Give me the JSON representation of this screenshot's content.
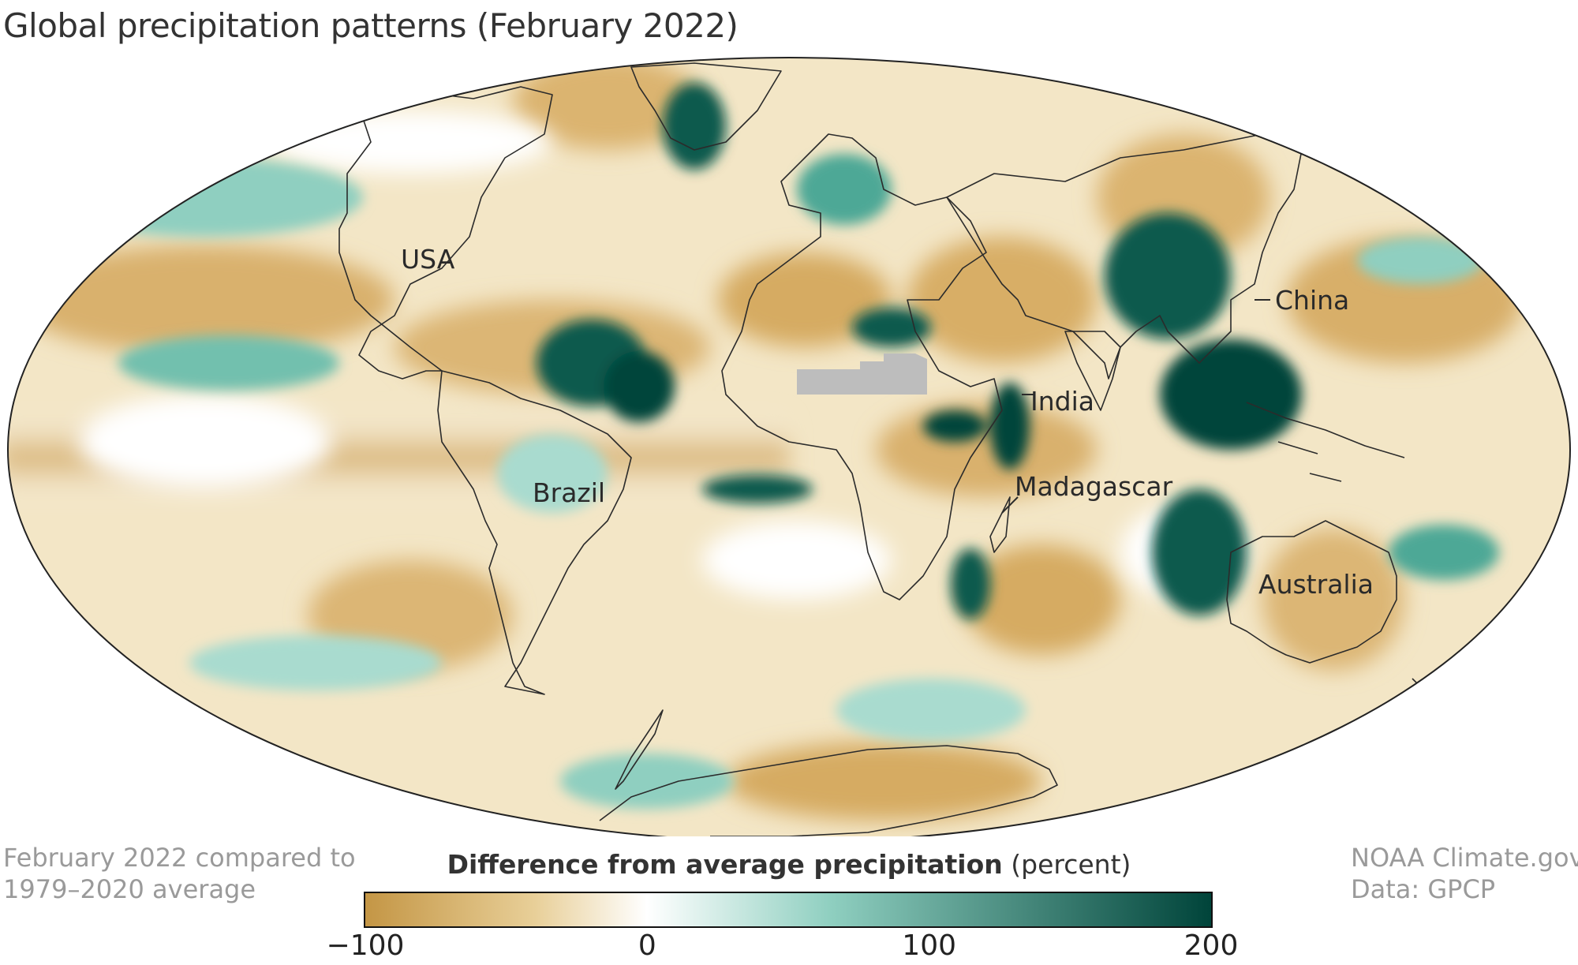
{
  "title": "Global precipitation patterns (February 2022)",
  "map": {
    "projection": "Mollweide",
    "regions": [
      {
        "label": "USA"
      },
      {
        "label": "China"
      },
      {
        "label": "India"
      },
      {
        "label": "Brazil"
      },
      {
        "label": "Madagascar"
      },
      {
        "label": "Australia"
      }
    ],
    "no_data_color": "#bdbdbd"
  },
  "footnote": {
    "line1": "February 2022 compared to",
    "line2": "1979–2020 average"
  },
  "credit": {
    "line1": "NOAA Climate.gov",
    "line2": "Data: GPCP"
  },
  "legend": {
    "title_bold": "Difference from average precipitation",
    "title_unit": "(percent)",
    "ticks": [
      "−100",
      "0",
      "100",
      "200"
    ],
    "tick_values": [
      -100,
      0,
      100,
      200
    ],
    "colors": {
      "dry_strong": "#c49645",
      "dry": "#e8cf98",
      "neutral": "#ffffff",
      "wet": "#8fcfc0",
      "wet_strong": "#00443a"
    }
  }
}
